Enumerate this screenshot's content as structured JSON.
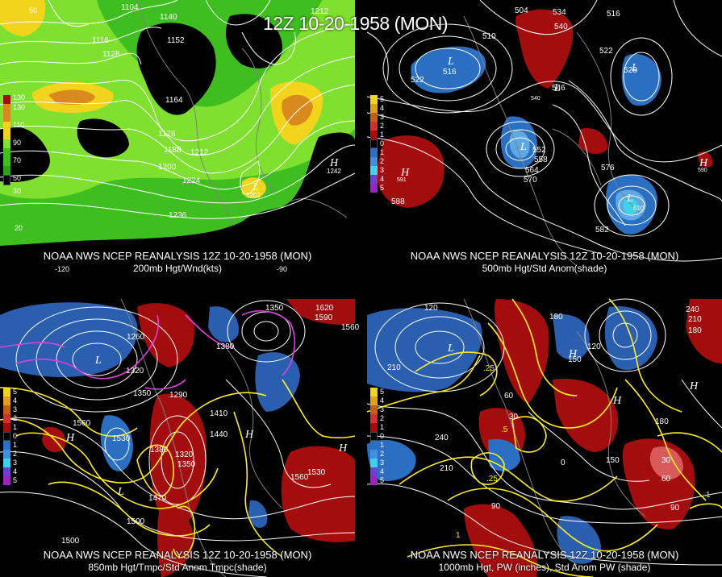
{
  "title": "12Z 10-20-1958 (MON)",
  "colors": {
    "wind_yellow": "#f2d41c",
    "wind_orange": "#d98a1c",
    "wind_green": "#3fbf1f",
    "wind_lightgreen": "#7fe02f",
    "anom_red": "#a30d0d",
    "anom_blue": "#2a6fc2",
    "anom_cyan": "#3fd2e6",
    "contour_white": "#ffffff",
    "contour_yellow": "#ffee22",
    "contour_magenta": "#e03fe0",
    "coastline": "#808080"
  },
  "panels": [
    {
      "id": "p200",
      "caption_line1": "NOAA NWS NCEP REANALYSIS 12Z 10-20-1958 (MON)",
      "caption_line2": "200mb Hgt/Wnd(kts)",
      "legend": [
        "130",
        "110",
        "90",
        "70",
        "50",
        "30"
      ],
      "height_labels": [
        "1104",
        "1140",
        "1116",
        "1152",
        "1128",
        "1164",
        "1176",
        "1188",
        "1200",
        "1212",
        "1224",
        "1236",
        "1212",
        "1242",
        "1202"
      ],
      "lon_labels": [
        "-120",
        "-90"
      ],
      "lat_labels": [
        "50",
        "20"
      ],
      "centers": [
        "L",
        "H"
      ]
    },
    {
      "id": "p500",
      "caption_line1": "NOAA NWS NCEP REANALYSIS 12Z 10-20-1958 (MON)",
      "caption_line2": "500mb Hgt/Std Anom(shade)",
      "legend": [
        "5",
        "4",
        "3",
        "2",
        "1",
        "0",
        "1",
        "2",
        "3",
        "4",
        "5"
      ],
      "height_labels": [
        "504",
        "534",
        "516",
        "510",
        "540",
        "522",
        "528",
        "516",
        "522",
        "546",
        "540",
        "552",
        "558",
        "564",
        "570",
        "576",
        "582",
        "588",
        "591",
        "590",
        "510"
      ],
      "centers": [
        "L",
        "L",
        "L",
        "L",
        "L",
        "H",
        "H"
      ]
    },
    {
      "id": "p850",
      "caption_line1": "NOAA NWS NCEP REANALYSIS 12Z 10-20-1958 (MON)",
      "caption_line2": "850mb Hgt/Tmpc/Std Anom Tmpc(shade)",
      "legend": [
        "5",
        "4",
        "3",
        "2",
        "1",
        "0",
        "1",
        "2",
        "3",
        "4",
        "5"
      ],
      "height_labels": [
        "1620",
        "1590",
        "1560",
        "1350",
        "1260",
        "1380",
        "1320",
        "1290",
        "1350",
        "1560",
        "1530",
        "1380",
        "1410",
        "1440",
        "1320",
        "1350",
        "1470",
        "1500",
        "1530",
        "1560",
        "1500"
      ],
      "centers": [
        "L",
        "L",
        "H",
        "H",
        "H"
      ]
    },
    {
      "id": "p1000",
      "caption_line1": "NOAA NWS NCEP REANALYSIS 12Z 10-20-1958 (MON)",
      "caption_line2": "1000mb Hgt, PW (inches), Std Anom PW (shade)",
      "legend": [
        "5",
        "4",
        "3",
        "2",
        "1",
        "0",
        "1",
        "2",
        "3",
        "4",
        "5"
      ],
      "height_labels": [
        "120",
        "240",
        "210",
        "180",
        "180",
        "210",
        "150",
        "120",
        "60",
        "30",
        "0",
        "90",
        "240",
        "210",
        "180",
        "150",
        "30",
        "60",
        "90"
      ],
      "pw_labels": [
        "1",
        ".25",
        ".5",
        ".25",
        "1"
      ],
      "centers": [
        "L",
        "H",
        "H",
        "H"
      ]
    }
  ]
}
